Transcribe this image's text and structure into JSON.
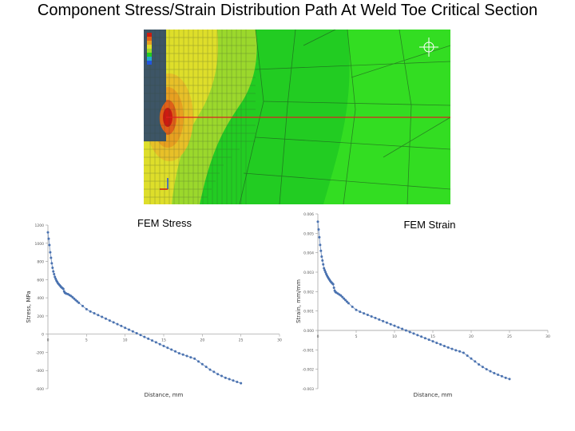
{
  "slide": {
    "title": "Component Stress/Strain Distribution Path At Weld Toe Critical Section"
  },
  "colors": {
    "fem_green": "#22cc22",
    "fem_bright_green": "#33dd22",
    "fem_yellow": "#dede2a",
    "fem_orange": "#e8a020",
    "fem_red": "#cc1b10",
    "path_line": "#e02020",
    "series_marker": "#4a72b0",
    "series_line": "#8aa2c8"
  },
  "chart_data": [
    {
      "type": "scatter",
      "title": "FEM Stress",
      "xlabel": "Distance, mm",
      "ylabel": "Stress, MPa",
      "xlim": [
        0,
        30
      ],
      "ylim": [
        -600,
        1200
      ],
      "x_ticks": [
        0,
        5,
        10,
        15,
        20,
        25,
        30
      ],
      "y_ticks": [
        1200,
        1000,
        800,
        600,
        400,
        200,
        0,
        -200,
        -400,
        -600
      ],
      "legend": "none",
      "grid": false,
      "series": [
        {
          "x": [
            0,
            0.1,
            0.2,
            0.3,
            0.4,
            0.5,
            0.6,
            0.7,
            0.8,
            0.9,
            1.0,
            1.1,
            1.2,
            1.3,
            1.4,
            1.5,
            1.6,
            1.7,
            1.8,
            1.9,
            2.0,
            2.1,
            2.2,
            2.3,
            2.4,
            2.6,
            2.8,
            3.0,
            3.2,
            3.4,
            3.6,
            3.8,
            4.0,
            4.5,
            5.0,
            5.5,
            6.0,
            6.5,
            7.0,
            7.5,
            8.0,
            8.5,
            9.0,
            9.5,
            10.0,
            10.5,
            11.0,
            11.5,
            12.0,
            12.5,
            13.0,
            13.5,
            14.0,
            14.5,
            15.0,
            15.5,
            16.0,
            16.5,
            17.0,
            17.5,
            18.0,
            18.5,
            19.0,
            19.5,
            20.0,
            20.5,
            21.0,
            21.5,
            22.0,
            22.5,
            23.0,
            23.5,
            24.0,
            24.5,
            25.0
          ],
          "y": [
            1120,
            1050,
            980,
            900,
            840,
            780,
            730,
            690,
            660,
            630,
            610,
            590,
            575,
            560,
            550,
            540,
            530,
            520,
            512,
            505,
            498,
            470,
            455,
            450,
            445,
            440,
            430,
            420,
            405,
            390,
            375,
            360,
            345,
            310,
            275,
            250,
            230,
            210,
            190,
            170,
            150,
            130,
            110,
            90,
            70,
            50,
            30,
            10,
            -10,
            -30,
            -50,
            -70,
            -90,
            -110,
            -130,
            -150,
            -170,
            -190,
            -210,
            -225,
            -240,
            -255,
            -270,
            -300,
            -330,
            -360,
            -390,
            -415,
            -440,
            -460,
            -480,
            -495,
            -510,
            -525,
            -540
          ]
        }
      ]
    },
    {
      "type": "scatter",
      "title": "FEM Strain",
      "xlabel": "Distance, mm",
      "ylabel": "Strain, mm/mm",
      "xlim": [
        0,
        30
      ],
      "ylim": [
        -0.003,
        0.006
      ],
      "x_ticks": [
        0,
        5,
        10,
        15,
        20,
        25,
        30
      ],
      "y_ticks": [
        0.006,
        0.005,
        0.004,
        0.003,
        0.002,
        0.001,
        0,
        -0.001,
        -0.002,
        -0.003
      ],
      "legend": "none",
      "grid": false,
      "series": [
        {
          "x": [
            0,
            0.1,
            0.2,
            0.3,
            0.4,
            0.5,
            0.6,
            0.7,
            0.8,
            0.9,
            1.0,
            1.1,
            1.2,
            1.3,
            1.4,
            1.5,
            1.6,
            1.7,
            1.8,
            1.9,
            2.0,
            2.1,
            2.2,
            2.3,
            2.4,
            2.6,
            2.8,
            3.0,
            3.2,
            3.4,
            3.6,
            3.8,
            4.0,
            4.5,
            5.0,
            5.5,
            6.0,
            6.5,
            7.0,
            7.5,
            8.0,
            8.5,
            9.0,
            9.5,
            10.0,
            10.5,
            11.0,
            11.5,
            12.0,
            12.5,
            13.0,
            13.5,
            14.0,
            14.5,
            15.0,
            15.5,
            16.0,
            16.5,
            17.0,
            17.5,
            18.0,
            18.5,
            19.0,
            19.5,
            20.0,
            20.5,
            21.0,
            21.5,
            22.0,
            22.5,
            23.0,
            23.5,
            24.0,
            24.5,
            25.0
          ],
          "y": [
            0.0056,
            0.0052,
            0.0048,
            0.0044,
            0.0041,
            0.0038,
            0.0036,
            0.0034,
            0.0032,
            0.0031,
            0.003,
            0.0029,
            0.00282,
            0.00275,
            0.00268,
            0.00262,
            0.00256,
            0.0025,
            0.00246,
            0.00242,
            0.00238,
            0.0022,
            0.00205,
            0.00198,
            0.00195,
            0.0019,
            0.00185,
            0.0018,
            0.00172,
            0.00164,
            0.00156,
            0.00148,
            0.0014,
            0.00122,
            0.00106,
            0.00096,
            0.00088,
            0.0008,
            0.00072,
            0.00064,
            0.00056,
            0.00048,
            0.0004,
            0.00032,
            0.00024,
            0.00016,
            8e-05,
            0.0,
            -8e-05,
            -0.00016,
            -0.00024,
            -0.00032,
            -0.0004,
            -0.00048,
            -0.00056,
            -0.00064,
            -0.00072,
            -0.0008,
            -0.00088,
            -0.00095,
            -0.00102,
            -0.00108,
            -0.00115,
            -0.0013,
            -0.00145,
            -0.0016,
            -0.00175,
            -0.00188,
            -0.002,
            -0.0021,
            -0.0022,
            -0.00228,
            -0.00236,
            -0.00244,
            -0.0025
          ]
        }
      ]
    }
  ]
}
